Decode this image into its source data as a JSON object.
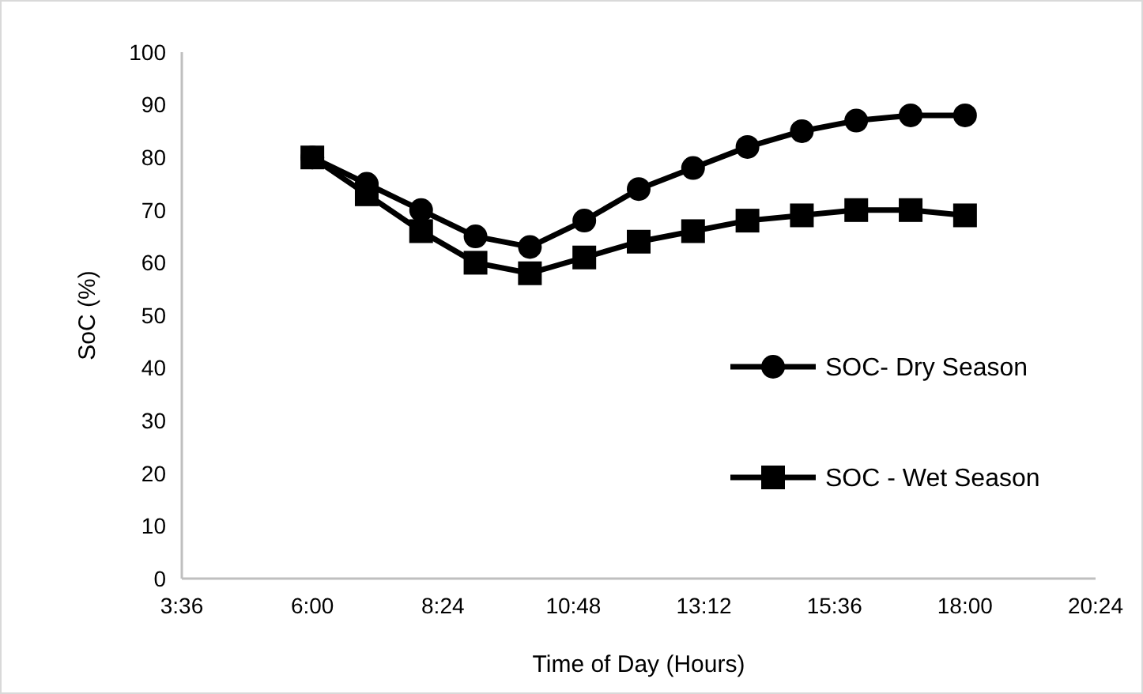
{
  "chart_data": {
    "type": "line",
    "xlabel": "Time of Day (Hours)",
    "ylabel": "SoC (%)",
    "x": [
      6,
      7,
      8,
      9,
      10,
      11,
      12,
      13,
      14,
      15,
      16,
      17,
      18
    ],
    "series": [
      {
        "name": "SOC- Dry Season",
        "color": "#000000",
        "marker": "circle",
        "values": [
          80,
          75,
          70,
          65,
          63,
          68,
          74,
          78,
          82,
          85,
          87,
          88,
          88
        ]
      },
      {
        "name": "SOC - Wet Season",
        "color": "#000000",
        "marker": "square",
        "values": [
          80,
          73,
          66,
          60,
          58,
          61,
          64,
          66,
          68,
          69,
          70,
          70,
          69
        ]
      }
    ],
    "xlim": [
      3.6,
      20.4
    ],
    "xticks": [
      {
        "value": 3.6,
        "label": "3:36"
      },
      {
        "value": 6,
        "label": "6:00"
      },
      {
        "value": 8.4,
        "label": "8:24"
      },
      {
        "value": 10.8,
        "label": "10:48"
      },
      {
        "value": 13.2,
        "label": "13:12"
      },
      {
        "value": 15.6,
        "label": "15:36"
      },
      {
        "value": 18,
        "label": "18:00"
      },
      {
        "value": 20.4,
        "label": "20:24"
      }
    ],
    "ylim": [
      0,
      100
    ],
    "yticks": [
      0,
      10,
      20,
      30,
      40,
      50,
      60,
      70,
      80,
      90,
      100
    ],
    "grid": false,
    "legend": "right",
    "line_style": "solid"
  }
}
